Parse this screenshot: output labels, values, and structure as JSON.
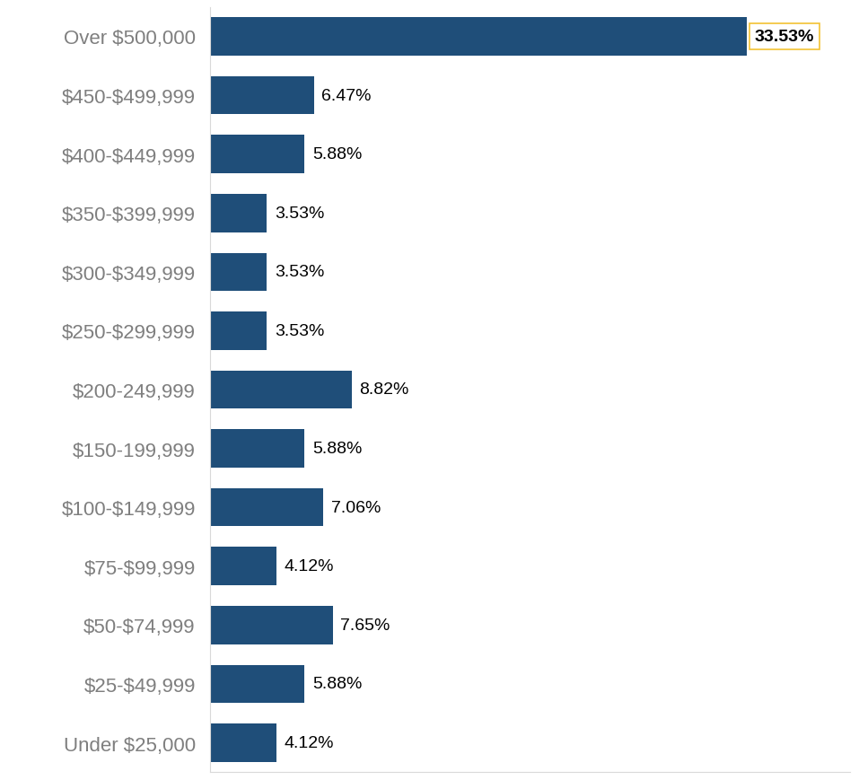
{
  "chart_data": {
    "type": "bar",
    "orientation": "horizontal",
    "categories": [
      "Over $500,000",
      "$450-$499,999",
      "$400-$449,999",
      "$350-$399,999",
      "$300-$349,999",
      "$250-$299,999",
      "$200-249,999",
      "$150-199,999",
      "$100-$149,999",
      "$75-$99,999",
      "$50-$74,999",
      "$25-$49,999",
      "Under $25,000"
    ],
    "values": [
      33.53,
      6.47,
      5.88,
      3.53,
      3.53,
      3.53,
      8.82,
      5.88,
      7.06,
      4.12,
      7.65,
      5.88,
      4.12
    ],
    "value_labels": [
      "33.53%",
      "6.47%",
      "5.88%",
      "3.53%",
      "3.53%",
      "3.53%",
      "8.82%",
      "5.88%",
      "7.06%",
      "4.12%",
      "7.65%",
      "5.88%",
      "4.12%"
    ],
    "color": "#1f4e79",
    "xlim": [
      0,
      40
    ],
    "data_labels": true,
    "tick_labels": "y",
    "grid": false
  }
}
